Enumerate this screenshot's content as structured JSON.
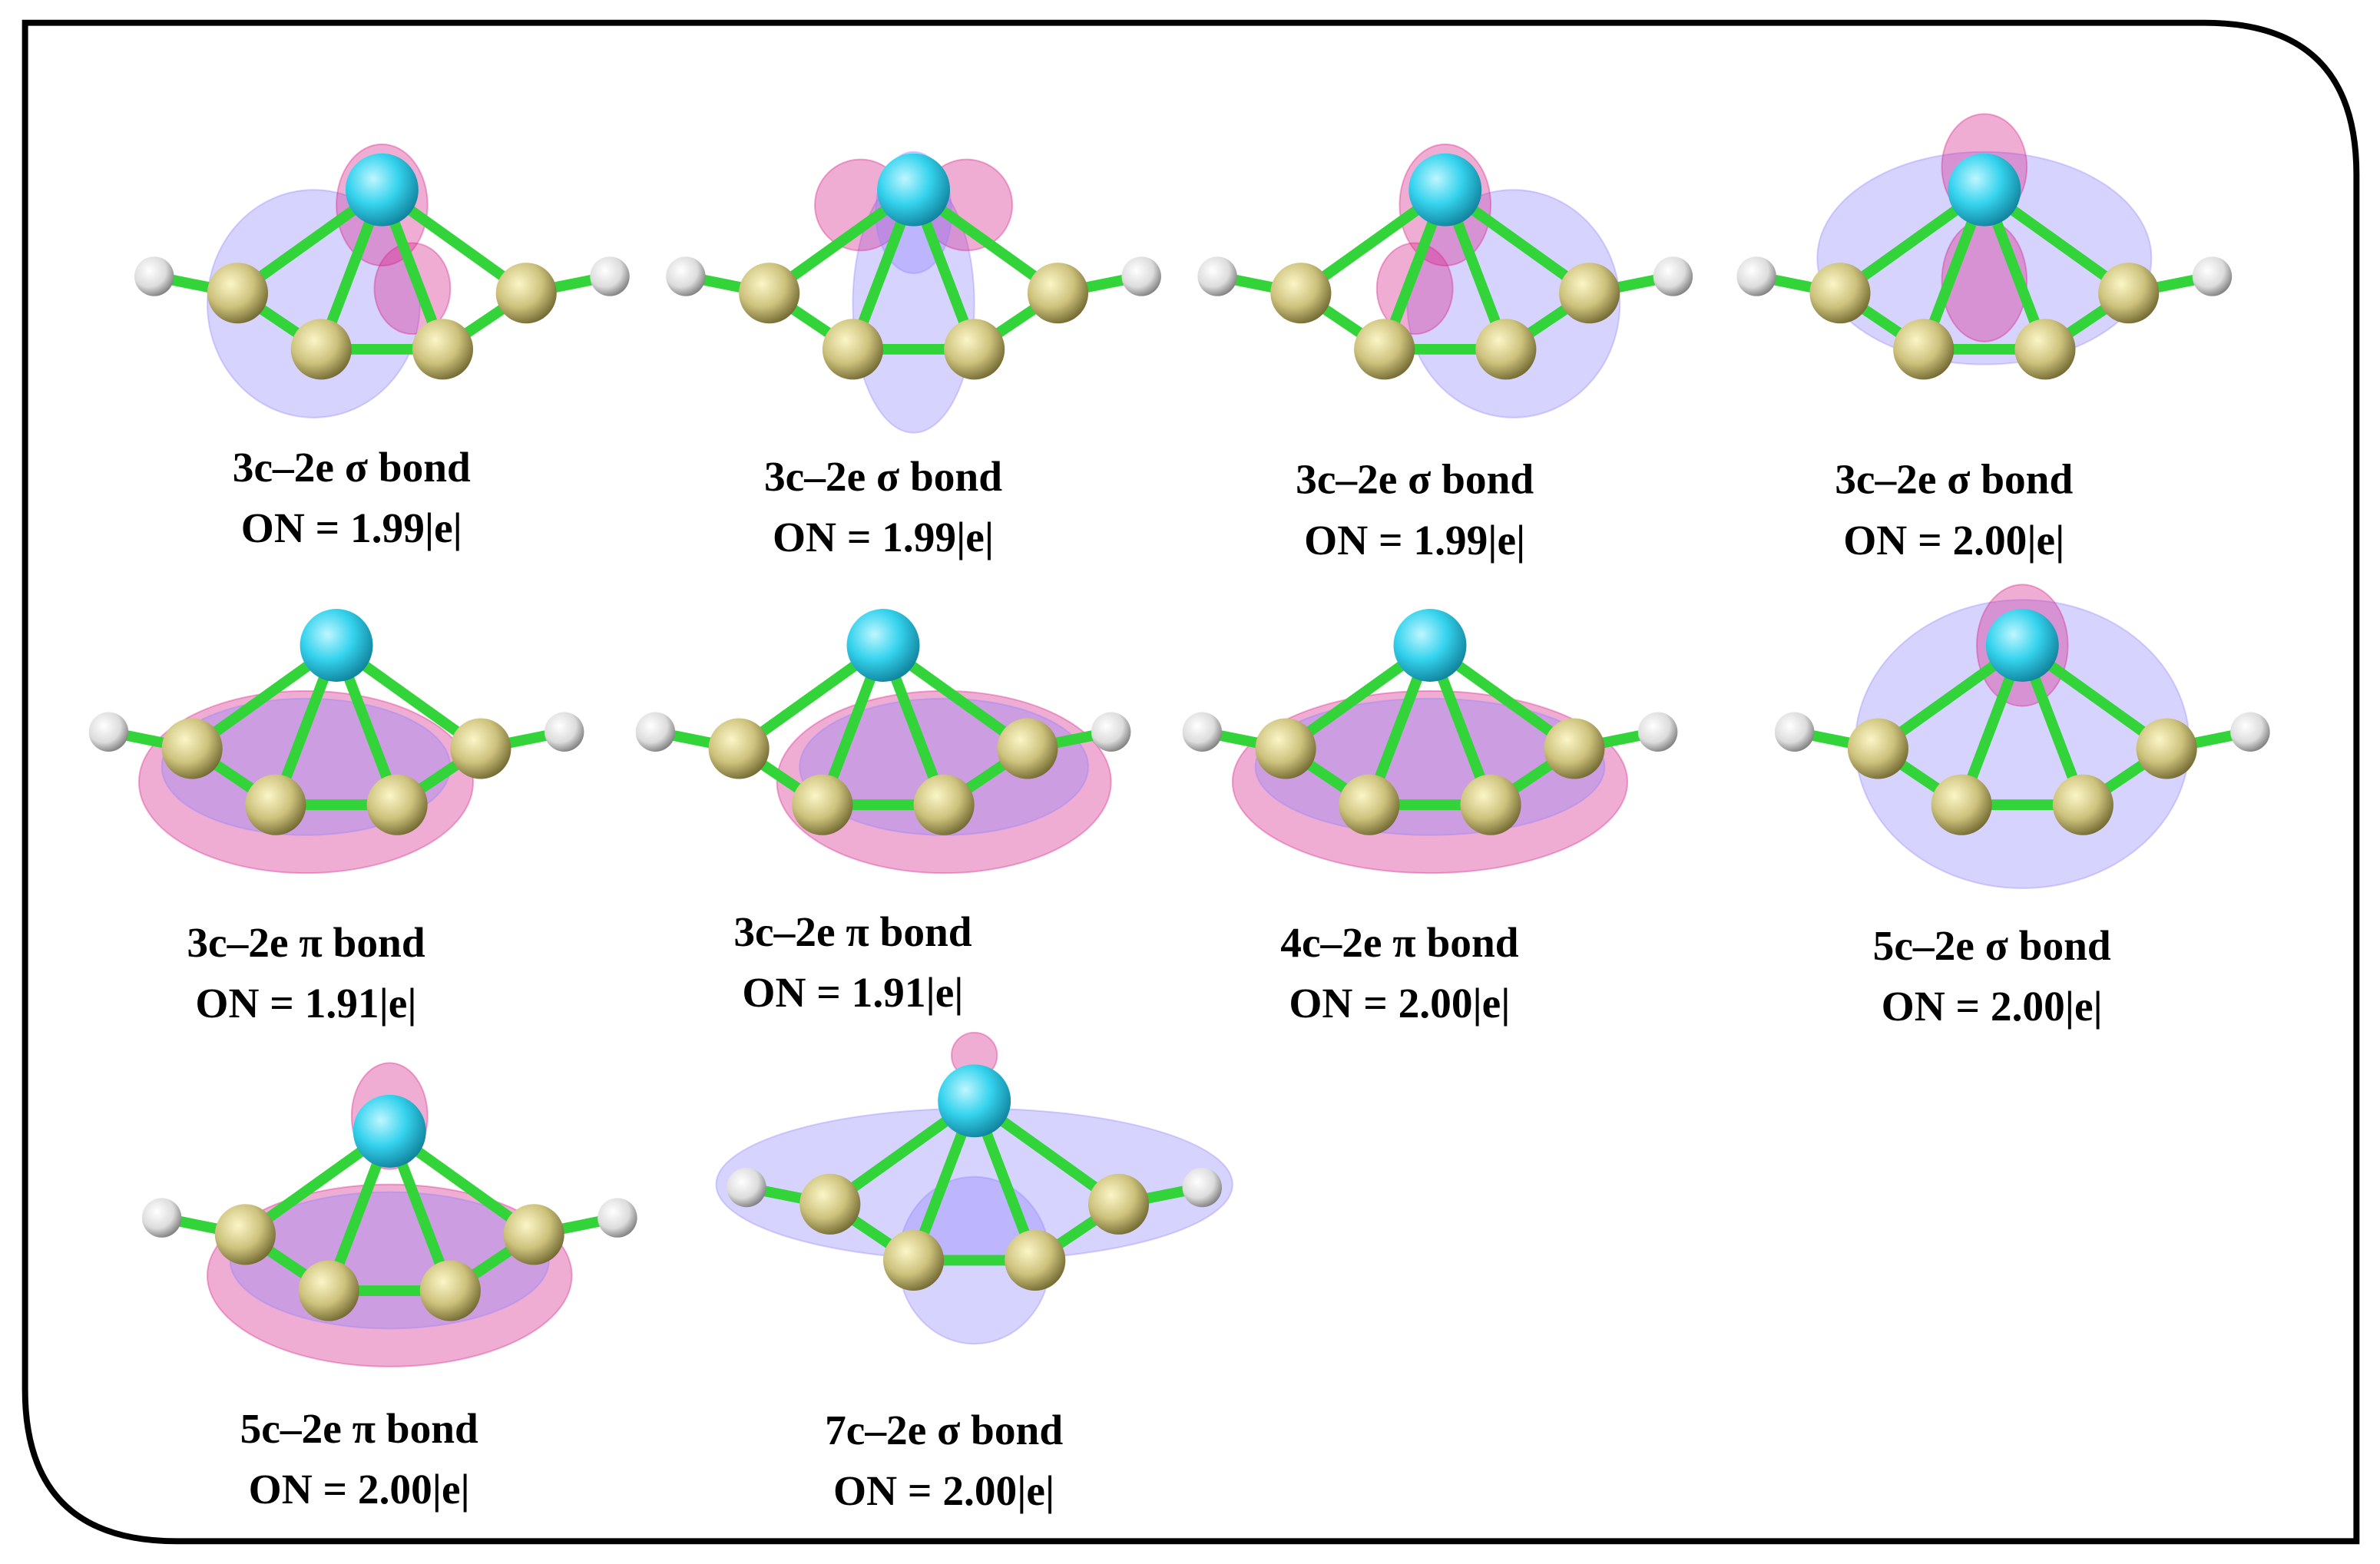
{
  "panels": [
    {
      "label": "3c–2e σ bond",
      "on": "ON = 1.99|e|"
    },
    {
      "label": "3c–2e σ bond",
      "on": "ON = 1.99|e|"
    },
    {
      "label": "3c–2e σ bond",
      "on": "ON = 1.99|e|"
    },
    {
      "label": "3c–2e σ bond",
      "on": "ON = 2.00|e|"
    },
    {
      "label": "3c–2e π bond",
      "on": "ON = 1.91|e|"
    },
    {
      "label": "3c–2e π bond",
      "on": "ON = 1.91|e|"
    },
    {
      "label": "4c–2e π bond",
      "on": "ON = 2.00|e|"
    },
    {
      "label": "5c–2e  σ bond",
      "on": "ON = 2.00|e|"
    },
    {
      "label": "5c–2e π bond",
      "on": "ON = 2.00|e|"
    },
    {
      "label": "7c–2e σ bond",
      "on": "ON = 2.00|e|"
    }
  ]
}
